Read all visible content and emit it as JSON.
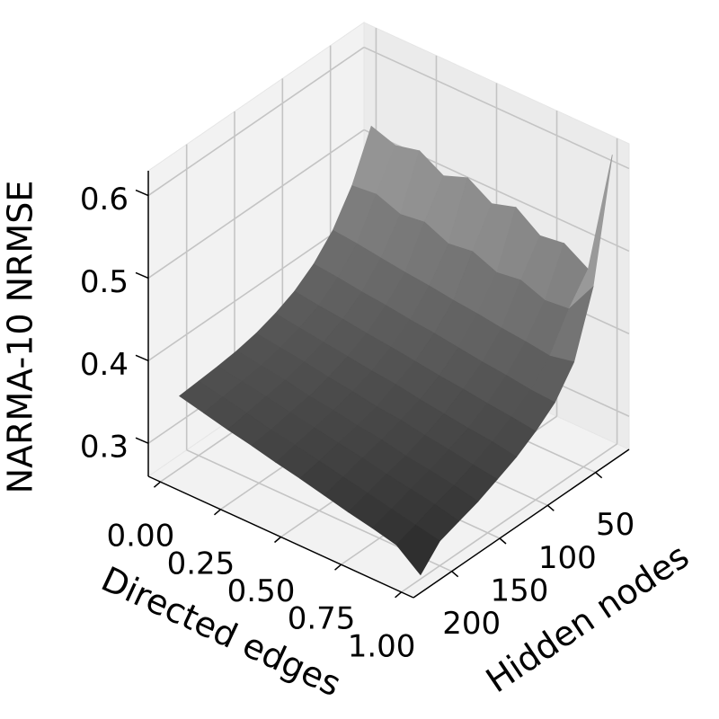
{
  "chart_data": {
    "type": "surface3d",
    "xlabel": "Directed edges",
    "ylabel": "Hidden nodes",
    "zlabel": "NARMA-10 NRMSE",
    "x": [
      0,
      0.1,
      0.2,
      0.3,
      0.4,
      0.5,
      0.6,
      0.7,
      0.8,
      0.9,
      1.0
    ],
    "y": [
      20,
      40,
      60,
      80,
      100,
      120,
      140,
      160,
      180,
      200,
      220
    ],
    "values": [
      [
        0.515,
        0.505,
        0.512,
        0.495,
        0.506,
        0.488,
        0.497,
        0.476,
        0.48,
        0.462,
        0.614
      ],
      [
        0.459,
        0.462,
        0.451,
        0.455,
        0.442,
        0.446,
        0.434,
        0.438,
        0.427,
        0.43,
        0.47
      ],
      [
        0.421,
        0.418,
        0.414,
        0.41,
        0.407,
        0.403,
        0.4,
        0.396,
        0.393,
        0.389,
        0.395
      ],
      [
        0.396,
        0.393,
        0.389,
        0.386,
        0.382,
        0.379,
        0.375,
        0.371,
        0.368,
        0.364,
        0.362
      ],
      [
        0.379,
        0.375,
        0.372,
        0.368,
        0.365,
        0.361,
        0.357,
        0.354,
        0.35,
        0.347,
        0.343
      ],
      [
        0.368,
        0.364,
        0.36,
        0.356,
        0.352,
        0.349,
        0.344,
        0.34,
        0.336,
        0.333,
        0.328
      ],
      [
        0.36,
        0.356,
        0.352,
        0.347,
        0.343,
        0.338,
        0.335,
        0.33,
        0.326,
        0.321,
        0.317
      ],
      [
        0.355,
        0.35,
        0.346,
        0.34,
        0.336,
        0.331,
        0.327,
        0.321,
        0.317,
        0.312,
        0.306
      ],
      [
        0.352,
        0.347,
        0.342,
        0.336,
        0.331,
        0.326,
        0.321,
        0.315,
        0.31,
        0.305,
        0.298
      ],
      [
        0.35,
        0.344,
        0.338,
        0.331,
        0.326,
        0.32,
        0.314,
        0.308,
        0.302,
        0.296,
        0.29
      ],
      [
        0.348,
        0.341,
        0.334,
        0.328,
        0.321,
        0.315,
        0.308,
        0.301,
        0.295,
        0.288,
        0.265
      ]
    ],
    "xlim": [
      -0.05,
      1.05
    ],
    "ylim": [
      15,
      240
    ],
    "zlim": [
      0.26,
      0.63
    ],
    "xticks": [
      {
        "value": 0,
        "label": "0.00"
      },
      {
        "value": 0.25,
        "label": "0.25"
      },
      {
        "value": 0.5,
        "label": "0.50"
      },
      {
        "value": 0.75,
        "label": "0.75"
      },
      {
        "value": 1.0,
        "label": "1.00"
      }
    ],
    "yticks": [
      50,
      100,
      150,
      200
    ],
    "zticks": [
      0.3,
      0.4,
      0.5,
      0.6
    ],
    "grid": true,
    "colors": [
      "#222222",
      "#b8b8b8"
    ]
  }
}
